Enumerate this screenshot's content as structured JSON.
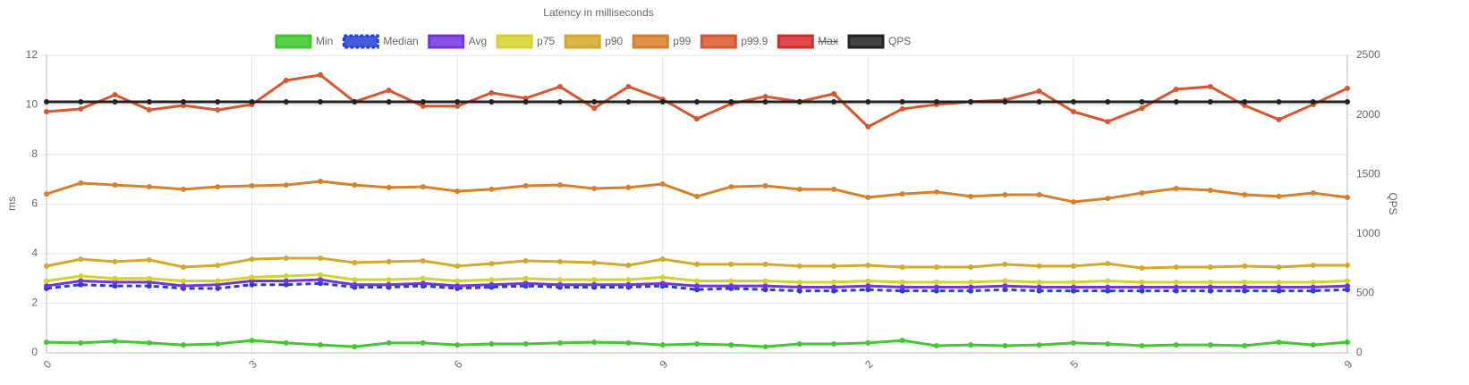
{
  "chart_data": {
    "type": "line",
    "title": "Latency in milliseconds",
    "y_label": "ms",
    "y2_label": "QPS",
    "categories": [
      "0",
      null,
      null,
      null,
      null,
      null,
      "3",
      null,
      null,
      null,
      null,
      null,
      "6",
      null,
      null,
      null,
      null,
      null,
      "9",
      null,
      null,
      null,
      null,
      null,
      "2",
      null,
      null,
      null,
      null,
      null,
      "5",
      null,
      null,
      null,
      null,
      null,
      null,
      null,
      "9"
    ],
    "ylim": [
      0,
      12
    ],
    "yticks": [
      0,
      2,
      4,
      6,
      8,
      10,
      12
    ],
    "y2lim": [
      0,
      2500
    ],
    "y2ticks": [
      0,
      500,
      1000,
      1500,
      2000,
      2500
    ],
    "grid": true,
    "legend": "top",
    "series": [
      {
        "name": "Min",
        "color": "#3ec92c",
        "values": [
          0.43,
          0.4,
          0.47,
          0.4,
          0.32,
          0.36,
          0.5,
          0.4,
          0.32,
          0.25,
          0.4,
          0.4,
          0.32,
          0.36,
          0.36,
          0.4,
          0.43,
          0.4,
          0.32,
          0.36,
          0.32,
          0.25,
          0.36,
          0.36,
          0.4,
          0.5,
          0.29,
          0.32,
          0.29,
          0.32,
          0.4,
          0.36,
          0.29,
          0.32,
          0.32,
          0.29,
          0.43,
          0.32,
          0.43
        ]
      },
      {
        "name": "Median",
        "color": "#2240d9",
        "dashed": true,
        "values": [
          2.6,
          2.75,
          2.7,
          2.7,
          2.6,
          2.6,
          2.75,
          2.75,
          2.8,
          2.65,
          2.65,
          2.7,
          2.6,
          2.65,
          2.7,
          2.65,
          2.65,
          2.65,
          2.7,
          2.55,
          2.6,
          2.55,
          2.5,
          2.5,
          2.55,
          2.5,
          2.5,
          2.5,
          2.55,
          2.5,
          2.5,
          2.5,
          2.5,
          2.5,
          2.5,
          2.5,
          2.5,
          2.5,
          2.55
        ]
      },
      {
        "name": "Avg",
        "color": "#7434e0",
        "values": [
          2.7,
          2.9,
          2.85,
          2.85,
          2.7,
          2.75,
          2.9,
          2.9,
          2.95,
          2.75,
          2.75,
          2.8,
          2.7,
          2.75,
          2.8,
          2.75,
          2.75,
          2.75,
          2.8,
          2.7,
          2.7,
          2.7,
          2.65,
          2.65,
          2.7,
          2.65,
          2.65,
          2.65,
          2.7,
          2.65,
          2.65,
          2.65,
          2.65,
          2.65,
          2.65,
          2.65,
          2.65,
          2.65,
          2.7
        ]
      },
      {
        "name": "p75",
        "color": "#d6d22a",
        "values": [
          2.9,
          3.1,
          3.0,
          3.0,
          2.9,
          2.9,
          3.05,
          3.1,
          3.15,
          2.95,
          2.95,
          3.0,
          2.9,
          2.95,
          3.0,
          2.95,
          2.95,
          2.95,
          3.05,
          2.9,
          2.9,
          2.9,
          2.85,
          2.85,
          2.9,
          2.85,
          2.85,
          2.85,
          2.9,
          2.85,
          2.85,
          2.9,
          2.85,
          2.85,
          2.85,
          2.85,
          2.85,
          2.85,
          2.9
        ]
      },
      {
        "name": "p90",
        "color": "#d6a82a",
        "values": [
          3.5,
          3.78,
          3.68,
          3.75,
          3.46,
          3.53,
          3.78,
          3.82,
          3.82,
          3.64,
          3.68,
          3.71,
          3.5,
          3.6,
          3.71,
          3.68,
          3.64,
          3.53,
          3.78,
          3.57,
          3.57,
          3.57,
          3.5,
          3.5,
          3.53,
          3.46,
          3.46,
          3.46,
          3.57,
          3.5,
          3.5,
          3.6,
          3.42,
          3.46,
          3.46,
          3.5,
          3.46,
          3.53,
          3.53
        ]
      },
      {
        "name": "p99",
        "color": "#d97f2a",
        "values": [
          6.41,
          6.85,
          6.77,
          6.7,
          6.6,
          6.7,
          6.74,
          6.77,
          6.92,
          6.77,
          6.67,
          6.7,
          6.52,
          6.6,
          6.74,
          6.77,
          6.63,
          6.67,
          6.81,
          6.31,
          6.7,
          6.74,
          6.6,
          6.6,
          6.27,
          6.41,
          6.49,
          6.31,
          6.38,
          6.38,
          6.09,
          6.23,
          6.45,
          6.63,
          6.56,
          6.38,
          6.31,
          6.45,
          6.27
        ]
      },
      {
        "name": "p99.9",
        "color": "#d9552a",
        "values": [
          9.73,
          9.84,
          10.41,
          9.8,
          9.98,
          9.8,
          10.02,
          10.99,
          11.21,
          10.13,
          10.59,
          9.95,
          9.95,
          10.49,
          10.27,
          10.74,
          9.87,
          10.74,
          10.23,
          9.44,
          10.05,
          10.34,
          10.13,
          10.45,
          9.12,
          9.84,
          10.02,
          10.13,
          10.2,
          10.56,
          9.73,
          9.33,
          9.87,
          10.63,
          10.74,
          9.98,
          9.41,
          10.02,
          10.67
        ]
      },
      {
        "name": "Max",
        "color": "#d92a2a",
        "hidden": true
      },
      {
        "name": "QPS",
        "color": "#222222",
        "axis": "y2",
        "values": [
          2110,
          2110,
          2110,
          2110,
          2110,
          2110,
          2110,
          2110,
          2110,
          2110,
          2110,
          2110,
          2110,
          2110,
          2110,
          2110,
          2110,
          2110,
          2110,
          2110,
          2110,
          2110,
          2110,
          2110,
          2110,
          2110,
          2110,
          2110,
          2110,
          2110,
          2110,
          2110,
          2110,
          2110,
          2110,
          2110,
          2110,
          2110,
          2110
        ]
      }
    ]
  }
}
